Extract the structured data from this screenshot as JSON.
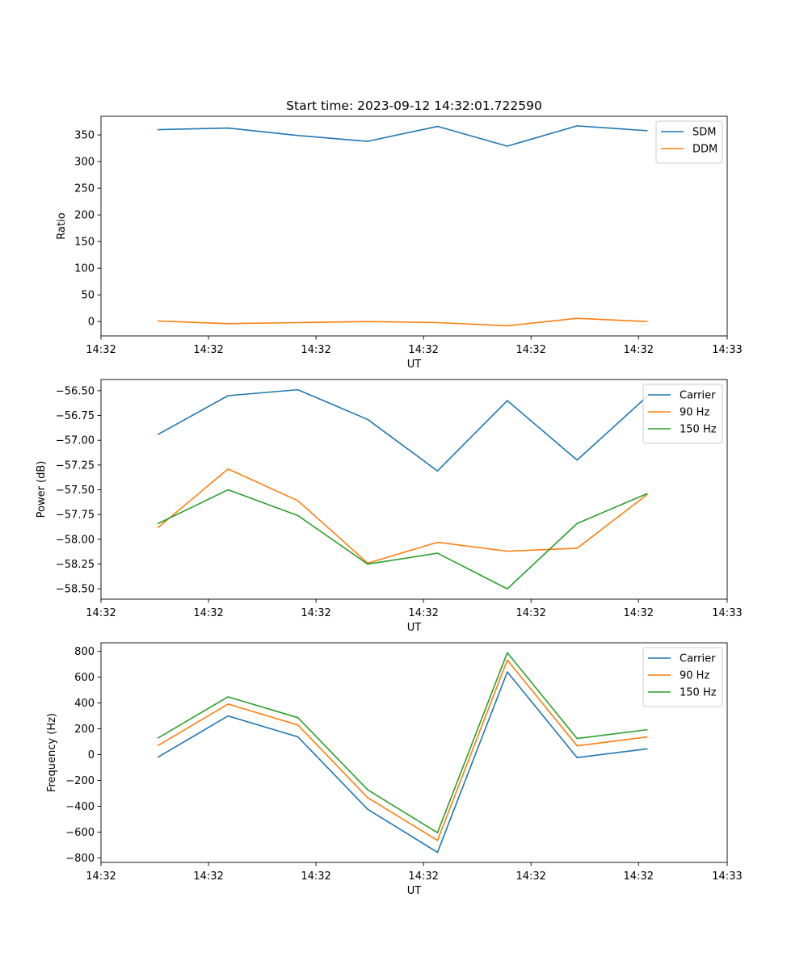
{
  "chart_data": [
    {
      "type": "line",
      "title": "Start time: 2023-09-12 14:32:01.722590",
      "xlabel": "UT",
      "ylabel": "Ratio",
      "x": [
        1,
        2,
        3,
        4,
        5,
        6,
        7,
        8
      ],
      "xlim": [
        0.18,
        9.15
      ],
      "xticks": [
        0.18,
        1.72,
        3.26,
        4.8,
        6.34,
        7.88,
        9.15
      ],
      "xtick_labels": [
        "14:32",
        "14:32",
        "14:32",
        "14:32",
        "14:32",
        "14:32",
        "14:33"
      ],
      "ylim": [
        -27,
        385
      ],
      "yticks": [
        0,
        50,
        100,
        150,
        200,
        250,
        300,
        350
      ],
      "ytick_labels": [
        "0",
        "50",
        "100",
        "150",
        "200",
        "250",
        "300",
        "350"
      ],
      "legend_position": "top-right",
      "series": [
        {
          "name": "SDM",
          "color": "#1f77b4",
          "values": [
            360,
            363,
            349,
            338,
            366,
            329,
            367,
            358
          ]
        },
        {
          "name": "DDM",
          "color": "#ff7f0e",
          "values": [
            1,
            -4,
            -2,
            0,
            -2,
            -8,
            6,
            0
          ]
        }
      ]
    },
    {
      "type": "line",
      "title": "",
      "xlabel": "UT",
      "ylabel": "Power (dB)",
      "x": [
        1,
        2,
        3,
        4,
        5,
        6,
        7,
        8
      ],
      "xlim": [
        0.18,
        9.15
      ],
      "xticks": [
        0.18,
        1.72,
        3.26,
        4.8,
        6.34,
        7.88,
        9.15
      ],
      "xtick_labels": [
        "14:32",
        "14:32",
        "14:32",
        "14:32",
        "14:32",
        "14:32",
        "14:33"
      ],
      "ylim": [
        -58.604,
        -56.387
      ],
      "yticks": [
        -58.5,
        -58.25,
        -58.0,
        -57.75,
        -57.5,
        -57.25,
        -57.0,
        -56.75,
        -56.5
      ],
      "ytick_labels": [
        "−58.50",
        "−58.25",
        "−58.00",
        "−57.75",
        "−57.50",
        "−57.25",
        "−57.00",
        "−56.75",
        "−56.50"
      ],
      "legend_position": "top-right",
      "series": [
        {
          "name": "Carrier",
          "color": "#1f77b4",
          "values": [
            -56.94,
            -56.55,
            -56.49,
            -56.79,
            -57.31,
            -56.6,
            -57.2,
            -56.56
          ]
        },
        {
          "name": "90 Hz",
          "color": "#ff7f0e",
          "values": [
            -57.88,
            -57.29,
            -57.61,
            -58.24,
            -58.03,
            -58.12,
            -58.09,
            -57.55
          ]
        },
        {
          "name": "150 Hz",
          "color": "#2ca02c",
          "values": [
            -57.84,
            -57.5,
            -57.76,
            -58.25,
            -58.14,
            -58.5,
            -57.84,
            -57.54
          ]
        }
      ]
    },
    {
      "type": "line",
      "title": "",
      "xlabel": "UT",
      "ylabel": "Frequency (Hz)",
      "x": [
        1,
        2,
        3,
        4,
        5,
        6,
        7,
        8
      ],
      "xlim": [
        0.18,
        9.15
      ],
      "xticks": [
        0.18,
        1.72,
        3.26,
        4.8,
        6.34,
        7.88,
        9.15
      ],
      "xtick_labels": [
        "14:32",
        "14:32",
        "14:32",
        "14:32",
        "14:32",
        "14:32",
        "14:33"
      ],
      "ylim": [
        -835,
        867
      ],
      "yticks": [
        -800,
        -600,
        -400,
        -200,
        0,
        200,
        400,
        600,
        800
      ],
      "ytick_labels": [
        "−800",
        "−600",
        "−400",
        "−200",
        "0",
        "200",
        "400",
        "600",
        "800"
      ],
      "legend_position": "top-right",
      "series": [
        {
          "name": "Carrier",
          "color": "#1f77b4",
          "values": [
            -18,
            300,
            138,
            -423,
            -757,
            641,
            -23,
            45
          ]
        },
        {
          "name": "90 Hz",
          "color": "#ff7f0e",
          "values": [
            72,
            392,
            230,
            -333,
            -664,
            733,
            68,
            137
          ]
        },
        {
          "name": "150 Hz",
          "color": "#2ca02c",
          "values": [
            130,
            448,
            287,
            -272,
            -605,
            790,
            125,
            193
          ]
        }
      ]
    }
  ]
}
